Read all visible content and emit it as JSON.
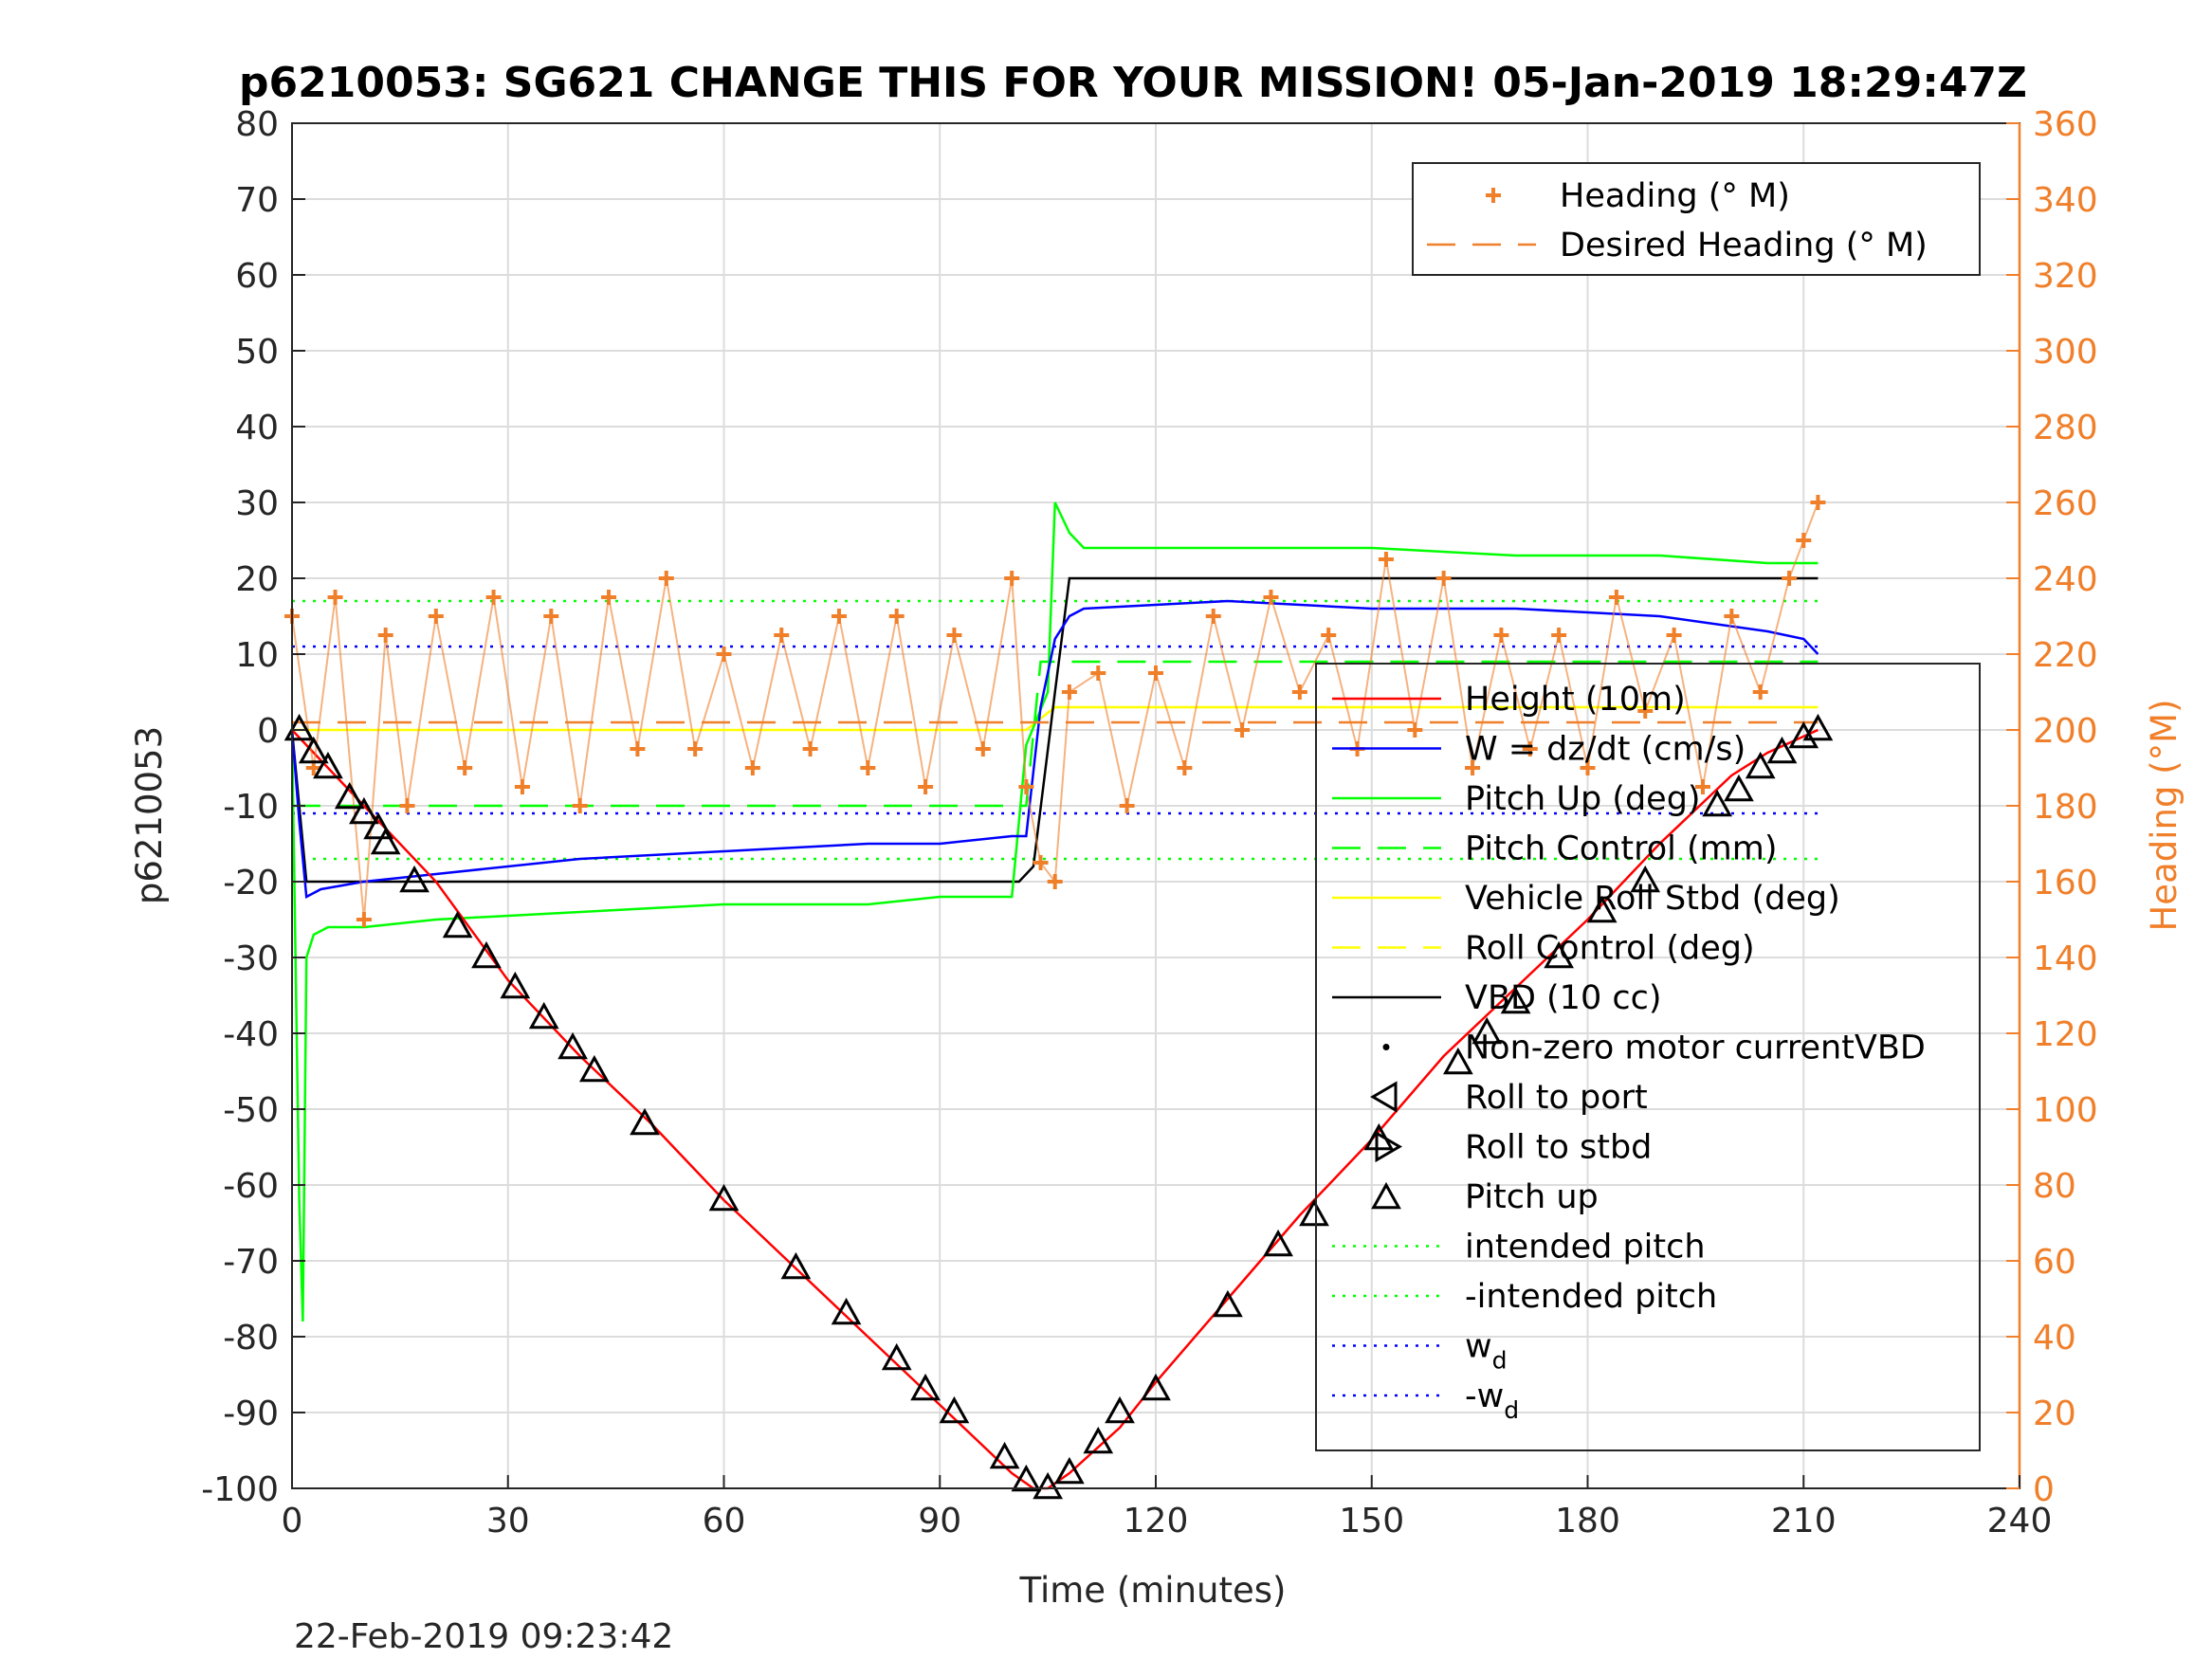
{
  "chart_data": {
    "type": "line",
    "title": "p6210053: SG621 CHANGE THIS FOR YOUR MISSION! 05-Jan-2019 18:29:47Z",
    "xlabel": "Time (minutes)",
    "ylabel": "p6210053",
    "y2label": "Heading (°M)",
    "timestamp": "22-Feb-2019 09:23:42",
    "xlim": [
      0,
      240
    ],
    "ylim": [
      -100,
      80
    ],
    "y2lim": [
      0,
      360
    ],
    "xticks": [
      0,
      30,
      60,
      90,
      120,
      150,
      180,
      210,
      240
    ],
    "yticks": [
      80,
      70,
      60,
      50,
      40,
      30,
      20,
      10,
      0,
      -10,
      -20,
      -30,
      -40,
      -50,
      -60,
      -70,
      -80,
      -90,
      -100
    ],
    "y2ticks": [
      360,
      340,
      320,
      300,
      280,
      260,
      240,
      220,
      200,
      180,
      160,
      140,
      120,
      100,
      80,
      60,
      40,
      20,
      0
    ],
    "grid": true,
    "legend_top": {
      "placement": "top-right",
      "entries": [
        "Heading (° M)",
        "Desired Heading (° M)"
      ]
    },
    "legend_main": {
      "placement": "right",
      "entries": [
        "Height (10m)",
        "W = dz/dt (cm/s)",
        "Pitch Up (deg)",
        "Pitch Control (mm)",
        "Vehicle Roll Stbd (deg)",
        "Roll Control (deg)",
        "VBD (10 cc)",
        "Non-zero motor currentVBD",
        "Roll to port",
        "Roll to stbd",
        "Pitch up",
        "intended pitch",
        "-intended pitch",
        "w",
        "-w"
      ],
      "subscripts": {
        "w": "d",
        "-w": "d"
      }
    },
    "colors": {
      "height": "#ff0000",
      "w": "#0000ff",
      "pitch": "#00ff00",
      "roll": "#ffff00",
      "vbd": "#000000",
      "heading": "#f07f2a",
      "markers": "#000000"
    },
    "series": [
      {
        "name": "Height (10m)",
        "x": [
          0,
          2,
          10,
          20,
          30,
          40,
          50,
          60,
          70,
          80,
          90,
          100,
          103,
          105,
          108,
          115,
          120,
          130,
          140,
          150,
          160,
          170,
          180,
          190,
          200,
          205,
          212
        ],
        "y": [
          0,
          -2,
          -10,
          -20,
          -33,
          -43,
          -52,
          -62,
          -71,
          -80,
          -89,
          -98,
          -100,
          -100,
          -98,
          -92,
          -86,
          -75,
          -64,
          -54,
          -43,
          -34,
          -25,
          -15,
          -6,
          -3,
          0
        ]
      },
      {
        "name": "W = dz/dt (cm/s)",
        "x": [
          0,
          1,
          2,
          4,
          10,
          20,
          40,
          60,
          80,
          90,
          100,
          102,
          104,
          106,
          108,
          110,
          130,
          150,
          170,
          190,
          205,
          210,
          212
        ],
        "y": [
          0,
          -12,
          -22,
          -21,
          -20,
          -19,
          -17,
          -16,
          -15,
          -15,
          -14,
          -14,
          3,
          12,
          15,
          16,
          17,
          16,
          16,
          15,
          13,
          12,
          10
        ]
      },
      {
        "name": "Pitch Up (deg)",
        "x": [
          0,
          1,
          1.5,
          2,
          3,
          5,
          10,
          20,
          40,
          60,
          80,
          90,
          100,
          102,
          105,
          106,
          107,
          108,
          110,
          130,
          150,
          170,
          190,
          205,
          210,
          212
        ],
        "y": [
          0,
          -62,
          -78,
          -30,
          -27,
          -26,
          -26,
          -25,
          -24,
          -23,
          -23,
          -22,
          -22,
          -2,
          5,
          30,
          28,
          26,
          24,
          24,
          24,
          23,
          23,
          22,
          22,
          22
        ]
      },
      {
        "name": "Pitch Control (mm)",
        "x": [
          0,
          2,
          30,
          60,
          90,
          102,
          104,
          150,
          210,
          212
        ],
        "y": [
          -10,
          -10,
          -10,
          -10,
          -10,
          -10,
          9,
          9,
          9,
          9
        ]
      },
      {
        "name": "Vehicle Roll Stbd (deg)",
        "x": [
          0,
          2,
          20,
          40,
          60,
          80,
          100,
          102,
          106,
          120,
          150,
          180,
          210,
          212
        ],
        "y": [
          0,
          0,
          0,
          0,
          0,
          0,
          0,
          0,
          3,
          3,
          3,
          3,
          3,
          3
        ]
      },
      {
        "name": "VBD (10 cc)",
        "x": [
          0,
          2,
          101,
          103,
          106,
          108,
          150,
          212
        ],
        "y": [
          0,
          -20,
          -20,
          -18,
          5,
          20,
          20,
          20
        ]
      },
      {
        "name": "intended pitch",
        "x": [
          0,
          212
        ],
        "y": [
          17,
          17
        ]
      },
      {
        "name": "-intended pitch",
        "x": [
          0,
          212
        ],
        "y": [
          -17,
          -17
        ]
      },
      {
        "name": "w",
        "x": [
          0,
          212
        ],
        "y": [
          11,
          11
        ]
      },
      {
        "name": "-w",
        "x": [
          0,
          212
        ],
        "y": [
          -11,
          -11
        ]
      },
      {
        "name": "Desired Heading (° M)",
        "x": [
          0,
          212
        ],
        "y2": [
          202,
          202
        ]
      },
      {
        "name": "Heading (° M)",
        "x": [
          0,
          3,
          6,
          10,
          13,
          16,
          20,
          24,
          28,
          32,
          36,
          40,
          44,
          48,
          52,
          56,
          60,
          64,
          68,
          72,
          76,
          80,
          84,
          88,
          92,
          96,
          100,
          102,
          104,
          106,
          108,
          112,
          116,
          120,
          124,
          128,
          132,
          136,
          140,
          144,
          148,
          152,
          156,
          160,
          164,
          168,
          172,
          176,
          180,
          184,
          188,
          192,
          196,
          200,
          204,
          208,
          210,
          212
        ],
        "y2": [
          230,
          190,
          235,
          150,
          225,
          180,
          230,
          190,
          235,
          185,
          230,
          180,
          235,
          195,
          240,
          195,
          220,
          190,
          225,
          195,
          230,
          190,
          230,
          185,
          225,
          195,
          240,
          185,
          165,
          160,
          210,
          215,
          180,
          215,
          190,
          230,
          200,
          235,
          210,
          225,
          195,
          245,
          200,
          240,
          190,
          225,
          195,
          225,
          190,
          235,
          205,
          225,
          185,
          230,
          210,
          240,
          250,
          260
        ]
      }
    ],
    "markers": {
      "pitch_up": [
        [
          1,
          0
        ],
        [
          3,
          -3
        ],
        [
          5,
          -5
        ],
        [
          8,
          -9
        ],
        [
          10,
          -11
        ],
        [
          12,
          -13
        ],
        [
          13,
          -15
        ],
        [
          17,
          -20
        ],
        [
          23,
          -26
        ],
        [
          27,
          -30
        ],
        [
          31,
          -34
        ],
        [
          35,
          -38
        ],
        [
          39,
          -42
        ],
        [
          42,
          -45
        ],
        [
          49,
          -52
        ],
        [
          60,
          -62
        ],
        [
          70,
          -71
        ],
        [
          77,
          -77
        ],
        [
          84,
          -83
        ],
        [
          88,
          -87
        ],
        [
          92,
          -90
        ],
        [
          99,
          -96
        ],
        [
          102,
          -99
        ],
        [
          105,
          -100
        ],
        [
          108,
          -98
        ],
        [
          112,
          -94
        ],
        [
          115,
          -90
        ],
        [
          120,
          -87
        ],
        [
          130,
          -76
        ],
        [
          137,
          -68
        ],
        [
          142,
          -64
        ],
        [
          151,
          -54
        ],
        [
          162,
          -44
        ],
        [
          166,
          -40
        ],
        [
          170,
          -36
        ],
        [
          176,
          -30
        ],
        [
          182,
          -24
        ],
        [
          188,
          -20
        ],
        [
          198,
          -10
        ],
        [
          201,
          -8
        ],
        [
          204,
          -5
        ],
        [
          207,
          -3
        ],
        [
          210,
          -1
        ],
        [
          212,
          0
        ]
      ]
    }
  }
}
